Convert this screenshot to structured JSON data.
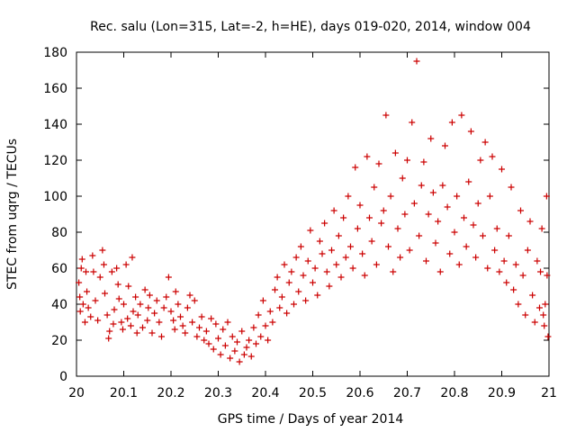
{
  "chart_data": {
    "type": "scatter",
    "title": "Rec. salu (Lon=315, Lat=-2, h=HE), days 019-020, 2014, window 004",
    "xlabel": "GPS time / Days of year 2014",
    "ylabel": "STEC from uqrg / TECUs",
    "xlim": [
      20,
      21
    ],
    "ylim": [
      0,
      180
    ],
    "xticks": [
      "20",
      "20.1",
      "20.2",
      "20.3",
      "20.4",
      "20.5",
      "20.6",
      "20.7",
      "20.8",
      "20.9",
      "21"
    ],
    "yticks": [
      "0",
      "20",
      "40",
      "60",
      "80",
      "100",
      "120",
      "140",
      "160",
      "180"
    ],
    "grid": false,
    "marker": "plus",
    "color": "#cc0000",
    "series": [
      {
        "name": "",
        "points": [
          [
            20.005,
            52
          ],
          [
            20.007,
            44
          ],
          [
            20.008,
            36
          ],
          [
            20.01,
            60
          ],
          [
            20.012,
            65
          ],
          [
            20.014,
            40
          ],
          [
            20.018,
            30
          ],
          [
            20.02,
            58
          ],
          [
            20.022,
            47
          ],
          [
            20.025,
            38
          ],
          [
            20.03,
            33
          ],
          [
            20.034,
            67
          ],
          [
            20.036,
            58
          ],
          [
            20.04,
            42
          ],
          [
            20.045,
            31
          ],
          [
            20.05,
            55
          ],
          [
            20.055,
            70
          ],
          [
            20.058,
            62
          ],
          [
            20.06,
            46
          ],
          [
            20.065,
            34
          ],
          [
            20.068,
            21
          ],
          [
            20.07,
            25
          ],
          [
            20.075,
            58
          ],
          [
            20.078,
            29
          ],
          [
            20.08,
            37
          ],
          [
            20.085,
            60
          ],
          [
            20.088,
            51
          ],
          [
            20.09,
            43
          ],
          [
            20.095,
            30
          ],
          [
            20.098,
            26
          ],
          [
            20.1,
            40
          ],
          [
            20.105,
            62
          ],
          [
            20.108,
            32
          ],
          [
            20.11,
            50
          ],
          [
            20.115,
            28
          ],
          [
            20.118,
            66
          ],
          [
            20.12,
            36
          ],
          [
            20.125,
            44
          ],
          [
            20.128,
            24
          ],
          [
            20.13,
            34
          ],
          [
            20.135,
            40
          ],
          [
            20.14,
            27
          ],
          [
            20.145,
            48
          ],
          [
            20.15,
            31
          ],
          [
            20.152,
            38
          ],
          [
            20.155,
            45
          ],
          [
            20.16,
            24
          ],
          [
            20.165,
            35
          ],
          [
            20.17,
            42
          ],
          [
            20.175,
            30
          ],
          [
            20.18,
            22
          ],
          [
            20.185,
            38
          ],
          [
            20.19,
            44
          ],
          [
            20.195,
            55
          ],
          [
            20.2,
            36
          ],
          [
            20.205,
            31
          ],
          [
            20.208,
            26
          ],
          [
            20.21,
            47
          ],
          [
            20.215,
            40
          ],
          [
            20.22,
            33
          ],
          [
            20.225,
            28
          ],
          [
            20.23,
            24
          ],
          [
            20.235,
            38
          ],
          [
            20.24,
            45
          ],
          [
            20.245,
            30
          ],
          [
            20.25,
            42
          ],
          [
            20.255,
            22
          ],
          [
            20.26,
            27
          ],
          [
            20.265,
            33
          ],
          [
            20.27,
            20
          ],
          [
            20.275,
            25
          ],
          [
            20.28,
            18
          ],
          [
            20.285,
            32
          ],
          [
            20.29,
            15
          ],
          [
            20.295,
            29
          ],
          [
            20.3,
            21
          ],
          [
            20.305,
            12
          ],
          [
            20.31,
            26
          ],
          [
            20.315,
            17
          ],
          [
            20.32,
            30
          ],
          [
            20.325,
            10
          ],
          [
            20.33,
            22
          ],
          [
            20.335,
            14
          ],
          [
            20.34,
            19
          ],
          [
            20.345,
            8
          ],
          [
            20.35,
            25
          ],
          [
            20.355,
            12
          ],
          [
            20.36,
            16
          ],
          [
            20.365,
            20
          ],
          [
            20.37,
            11
          ],
          [
            20.375,
            27
          ],
          [
            20.38,
            18
          ],
          [
            20.385,
            34
          ],
          [
            20.39,
            22
          ],
          [
            20.395,
            42
          ],
          [
            20.4,
            28
          ],
          [
            20.405,
            20
          ],
          [
            20.41,
            36
          ],
          [
            20.415,
            30
          ],
          [
            20.42,
            48
          ],
          [
            20.425,
            55
          ],
          [
            20.43,
            38
          ],
          [
            20.435,
            44
          ],
          [
            20.44,
            62
          ],
          [
            20.445,
            35
          ],
          [
            20.45,
            52
          ],
          [
            20.455,
            58
          ],
          [
            20.46,
            40
          ],
          [
            20.465,
            66
          ],
          [
            20.47,
            47
          ],
          [
            20.475,
            72
          ],
          [
            20.48,
            56
          ],
          [
            20.485,
            42
          ],
          [
            20.49,
            64
          ],
          [
            20.495,
            81
          ],
          [
            20.5,
            52
          ],
          [
            20.505,
            60
          ],
          [
            20.51,
            45
          ],
          [
            20.515,
            75
          ],
          [
            20.52,
            68
          ],
          [
            20.525,
            85
          ],
          [
            20.53,
            58
          ],
          [
            20.535,
            50
          ],
          [
            20.54,
            70
          ],
          [
            20.545,
            92
          ],
          [
            20.55,
            62
          ],
          [
            20.555,
            78
          ],
          [
            20.56,
            55
          ],
          [
            20.565,
            88
          ],
          [
            20.57,
            66
          ],
          [
            20.575,
            100
          ],
          [
            20.58,
            72
          ],
          [
            20.585,
            60
          ],
          [
            20.59,
            116
          ],
          [
            20.595,
            82
          ],
          [
            20.6,
            95
          ],
          [
            20.605,
            68
          ],
          [
            20.61,
            56
          ],
          [
            20.615,
            122
          ],
          [
            20.62,
            88
          ],
          [
            20.625,
            75
          ],
          [
            20.63,
            105
          ],
          [
            20.635,
            62
          ],
          [
            20.64,
            118
          ],
          [
            20.645,
            85
          ],
          [
            20.65,
            92
          ],
          [
            20.655,
            145
          ],
          [
            20.66,
            72
          ],
          [
            20.665,
            100
          ],
          [
            20.67,
            58
          ],
          [
            20.675,
            124
          ],
          [
            20.68,
            82
          ],
          [
            20.685,
            66
          ],
          [
            20.69,
            110
          ],
          [
            20.695,
            90
          ],
          [
            20.7,
            120
          ],
          [
            20.705,
            70
          ],
          [
            20.71,
            141
          ],
          [
            20.715,
            96
          ],
          [
            20.72,
            175
          ],
          [
            20.725,
            78
          ],
          [
            20.73,
            106
          ],
          [
            20.735,
            119
          ],
          [
            20.74,
            64
          ],
          [
            20.745,
            90
          ],
          [
            20.75,
            132
          ],
          [
            20.755,
            102
          ],
          [
            20.76,
            74
          ],
          [
            20.765,
            86
          ],
          [
            20.77,
            58
          ],
          [
            20.775,
            106
          ],
          [
            20.78,
            128
          ],
          [
            20.785,
            94
          ],
          [
            20.79,
            68
          ],
          [
            20.795,
            141
          ],
          [
            20.8,
            80
          ],
          [
            20.805,
            100
          ],
          [
            20.81,
            62
          ],
          [
            20.815,
            145
          ],
          [
            20.82,
            88
          ],
          [
            20.825,
            72
          ],
          [
            20.83,
            108
          ],
          [
            20.835,
            136
          ],
          [
            20.84,
            84
          ],
          [
            20.845,
            66
          ],
          [
            20.85,
            96
          ],
          [
            20.855,
            120
          ],
          [
            20.86,
            78
          ],
          [
            20.865,
            130
          ],
          [
            20.87,
            60
          ],
          [
            20.875,
            100
          ],
          [
            20.88,
            122
          ],
          [
            20.885,
            70
          ],
          [
            20.89,
            82
          ],
          [
            20.895,
            58
          ],
          [
            20.9,
            115
          ],
          [
            20.905,
            64
          ],
          [
            20.91,
            52
          ],
          [
            20.915,
            78
          ],
          [
            20.92,
            105
          ],
          [
            20.925,
            48
          ],
          [
            20.93,
            62
          ],
          [
            20.935,
            40
          ],
          [
            20.94,
            92
          ],
          [
            20.945,
            56
          ],
          [
            20.95,
            34
          ],
          [
            20.955,
            70
          ],
          [
            20.96,
            86
          ],
          [
            20.965,
            45
          ],
          [
            20.97,
            30
          ],
          [
            20.975,
            64
          ],
          [
            20.98,
            38
          ],
          [
            20.985,
            82
          ],
          [
            20.99,
            28
          ],
          [
            20.995,
            100
          ],
          [
            20.998,
            22
          ],
          [
            20.996,
            56
          ],
          [
            20.992,
            40
          ],
          [
            20.988,
            34
          ],
          [
            20.982,
            58
          ]
        ]
      }
    ]
  }
}
